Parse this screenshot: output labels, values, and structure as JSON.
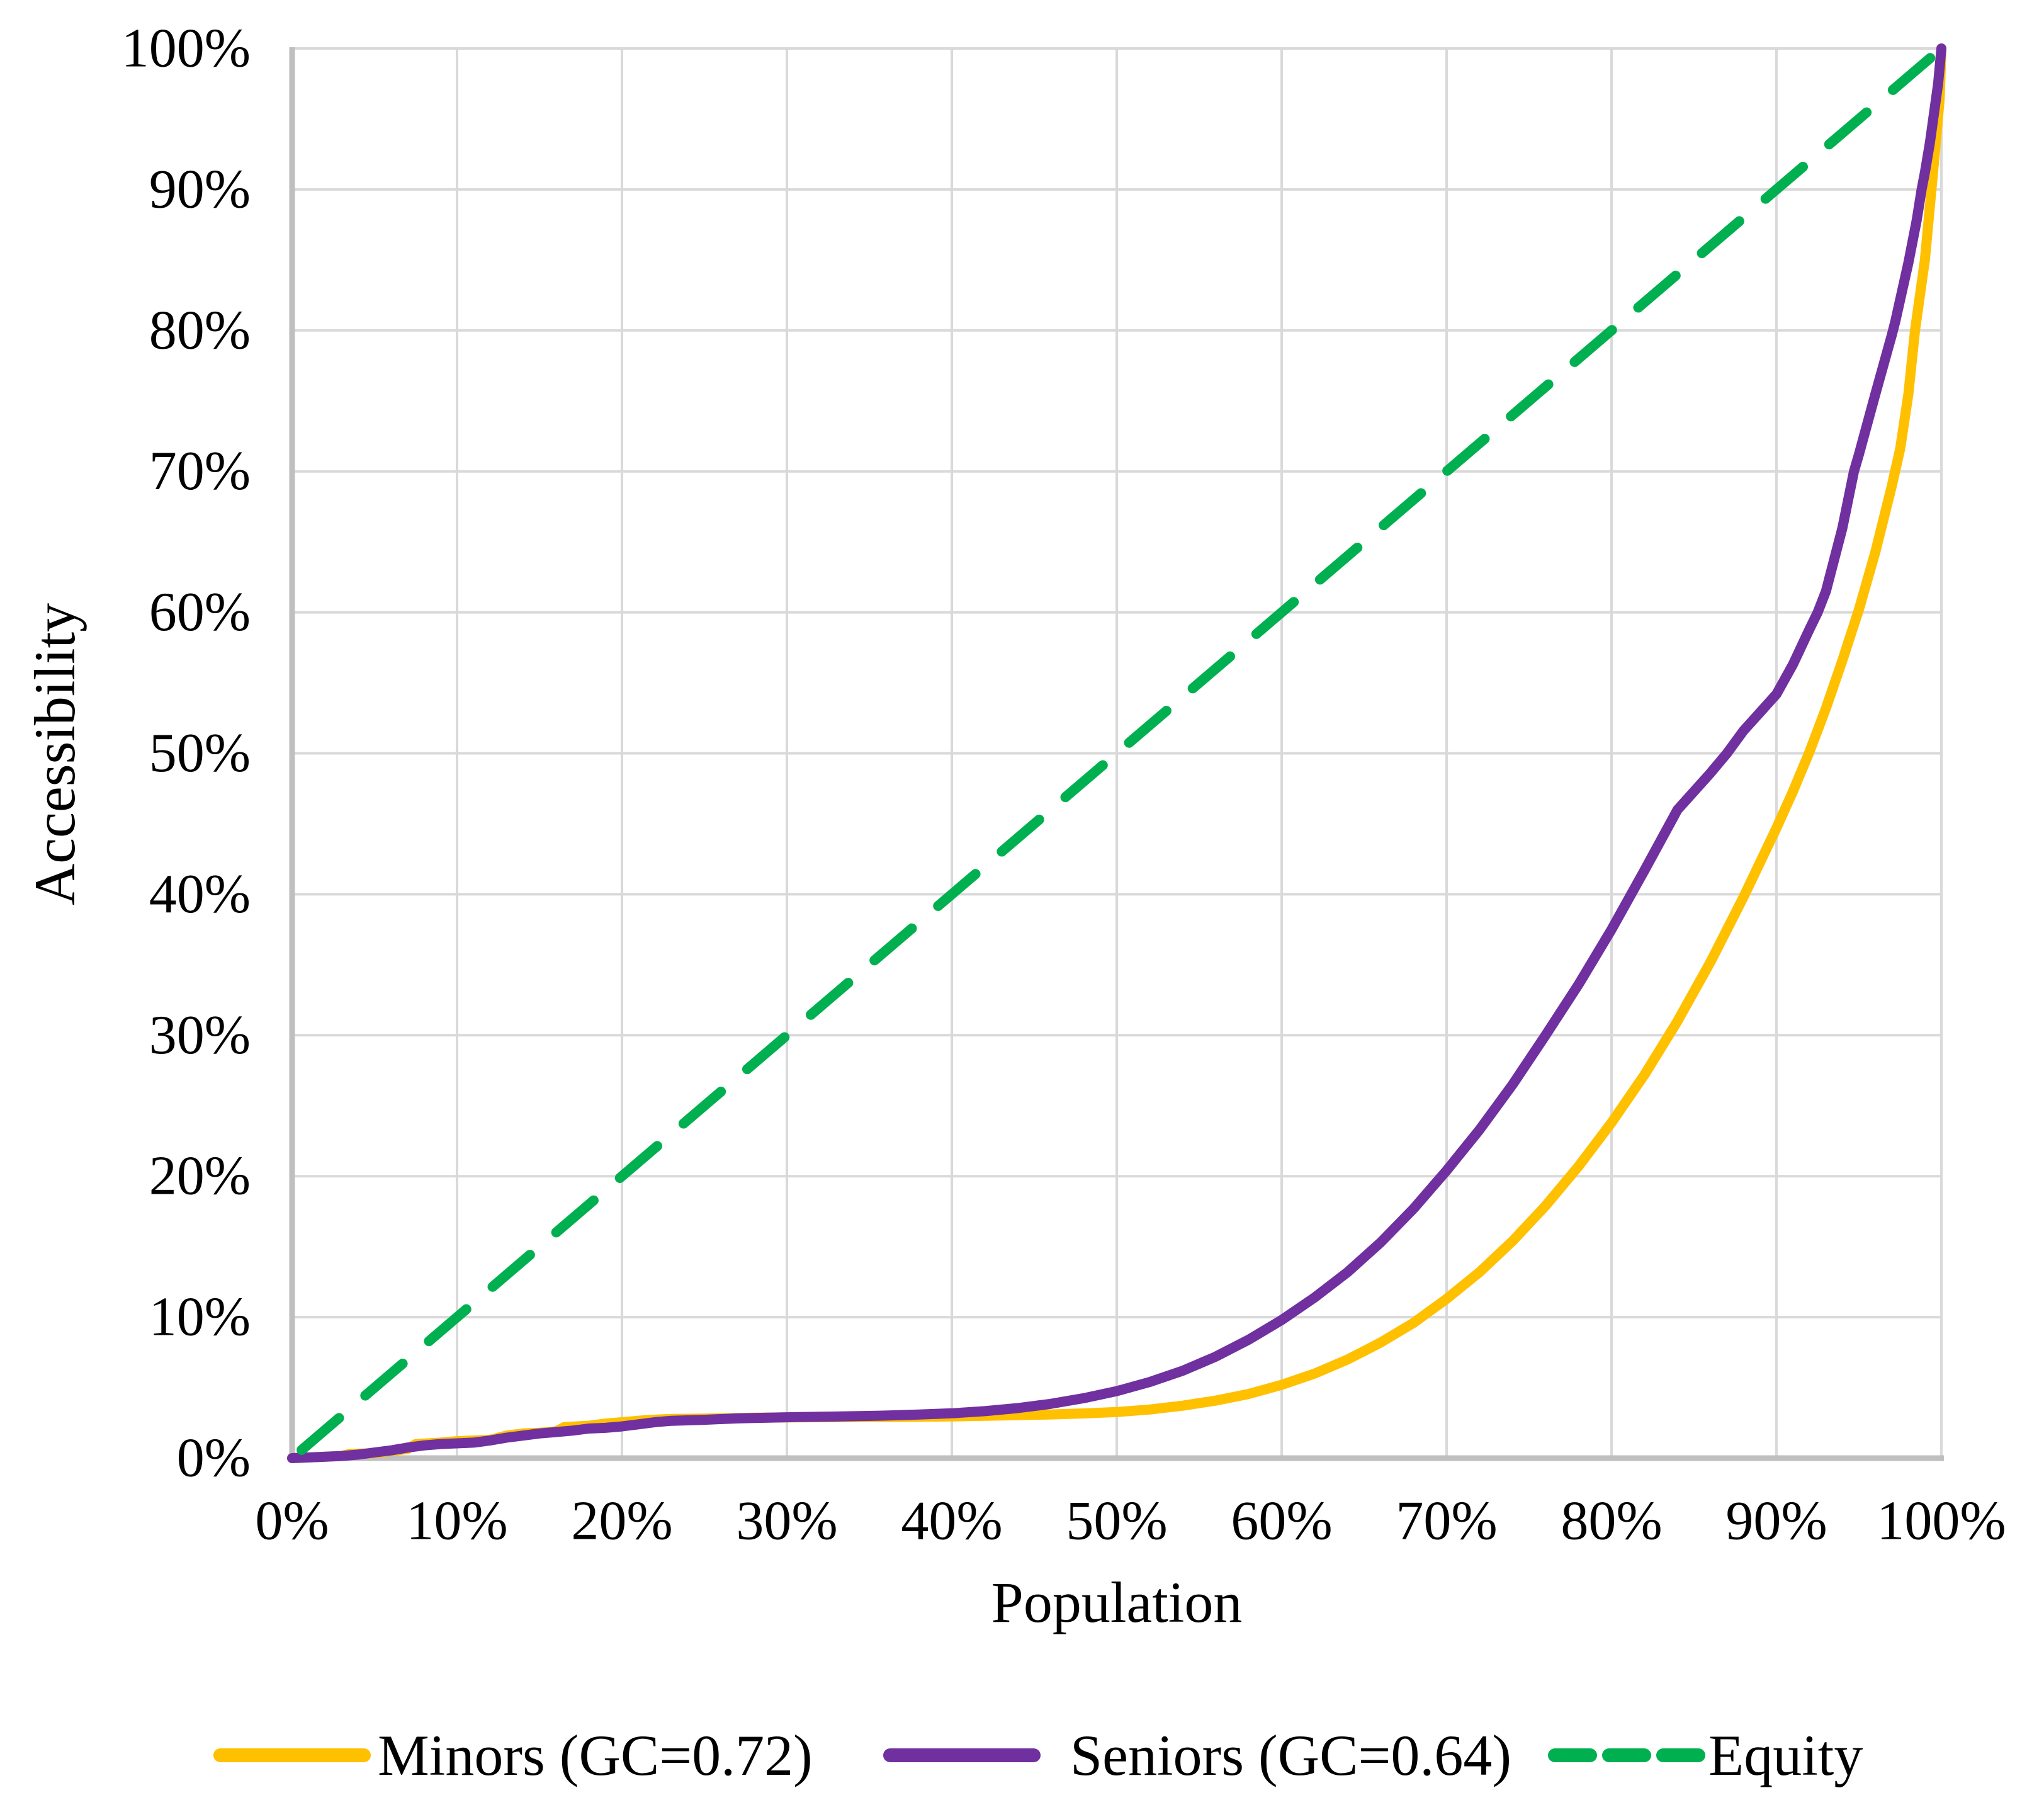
{
  "chart_data": {
    "type": "line",
    "title": "",
    "xlabel": "Population",
    "ylabel": "Accessibility",
    "xlim": [
      0,
      100
    ],
    "ylim": [
      0,
      100
    ],
    "grid": true,
    "legend_position": "bottom",
    "x_ticks": [
      "0%",
      "10%",
      "20%",
      "30%",
      "40%",
      "50%",
      "60%",
      "70%",
      "80%",
      "90%",
      "100%"
    ],
    "y_ticks": [
      "0%",
      "10%",
      "20%",
      "30%",
      "40%",
      "50%",
      "60%",
      "70%",
      "80%",
      "90%",
      "100%"
    ],
    "series": [
      {
        "name": "Minors (GC=0.72)",
        "color": "#FFC000",
        "line_style": "solid",
        "gini_coefficient": 0.72,
        "points": [
          [
            0,
            0
          ],
          [
            1,
            0.05
          ],
          [
            2,
            0.1
          ],
          [
            3,
            0.15
          ],
          [
            3.5,
            0.3
          ],
          [
            5,
            0.35
          ],
          [
            6,
            0.5
          ],
          [
            7,
            0.65
          ],
          [
            7.5,
            1.0
          ],
          [
            9,
            1.1
          ],
          [
            10,
            1.2
          ],
          [
            11,
            1.25
          ],
          [
            12,
            1.3
          ],
          [
            13,
            1.6
          ],
          [
            14,
            1.75
          ],
          [
            15,
            1.8
          ],
          [
            16,
            1.9
          ],
          [
            16.5,
            2.2
          ],
          [
            18,
            2.3
          ],
          [
            19,
            2.45
          ],
          [
            20.5,
            2.6
          ],
          [
            21.5,
            2.7
          ],
          [
            23,
            2.78
          ],
          [
            25,
            2.8
          ],
          [
            28,
            2.87
          ],
          [
            31,
            2.9
          ],
          [
            34,
            2.91
          ],
          [
            37,
            2.93
          ],
          [
            40,
            2.96
          ],
          [
            42,
            3.0
          ],
          [
            44,
            3.05
          ],
          [
            46,
            3.1
          ],
          [
            48,
            3.17
          ],
          [
            50,
            3.27
          ],
          [
            52,
            3.45
          ],
          [
            54,
            3.72
          ],
          [
            56,
            4.08
          ],
          [
            58,
            4.55
          ],
          [
            60,
            5.2
          ],
          [
            62,
            6.0
          ],
          [
            64,
            7.0
          ],
          [
            66,
            8.2
          ],
          [
            68,
            9.6
          ],
          [
            70,
            11.3
          ],
          [
            72,
            13.2
          ],
          [
            74,
            15.4
          ],
          [
            76,
            17.9
          ],
          [
            78,
            20.7
          ],
          [
            80,
            23.8
          ],
          [
            82,
            27.2
          ],
          [
            84,
            31.0
          ],
          [
            86,
            35.2
          ],
          [
            88,
            39.8
          ],
          [
            90,
            44.7
          ],
          [
            91,
            47.3
          ],
          [
            92,
            50.1
          ],
          [
            93,
            53.2
          ],
          [
            94,
            56.6
          ],
          [
            95,
            60.2
          ],
          [
            96,
            64.3
          ],
          [
            97,
            69.0
          ],
          [
            97.5,
            71.6
          ],
          [
            98,
            75.5
          ],
          [
            98.4,
            80.0
          ],
          [
            99,
            85.0
          ],
          [
            99.3,
            88.8
          ],
          [
            99.5,
            91.3
          ],
          [
            99.7,
            93.8
          ],
          [
            99.9,
            96.5
          ],
          [
            100,
            100
          ]
        ]
      },
      {
        "name": "Seniors (GC=0.64)",
        "color": "#7030A0",
        "line_style": "solid",
        "gini_coefficient": 0.64,
        "points": [
          [
            0,
            0
          ],
          [
            1,
            0.05
          ],
          [
            2,
            0.1
          ],
          [
            3,
            0.15
          ],
          [
            4,
            0.25
          ],
          [
            5,
            0.4
          ],
          [
            6,
            0.55
          ],
          [
            7,
            0.75
          ],
          [
            8,
            0.9
          ],
          [
            9,
            1.0
          ],
          [
            10,
            1.05
          ],
          [
            11,
            1.1
          ],
          [
            12,
            1.25
          ],
          [
            13,
            1.45
          ],
          [
            14,
            1.6
          ],
          [
            15,
            1.75
          ],
          [
            16,
            1.85
          ],
          [
            17,
            1.95
          ],
          [
            18,
            2.1
          ],
          [
            19,
            2.15
          ],
          [
            20,
            2.25
          ],
          [
            21,
            2.4
          ],
          [
            22,
            2.55
          ],
          [
            23,
            2.65
          ],
          [
            25,
            2.72
          ],
          [
            27,
            2.82
          ],
          [
            28,
            2.85
          ],
          [
            30,
            2.9
          ],
          [
            33,
            2.95
          ],
          [
            36,
            3.02
          ],
          [
            38,
            3.09
          ],
          [
            40,
            3.18
          ],
          [
            42,
            3.33
          ],
          [
            44,
            3.55
          ],
          [
            46,
            3.85
          ],
          [
            48,
            4.25
          ],
          [
            50,
            4.75
          ],
          [
            52,
            5.4
          ],
          [
            54,
            6.2
          ],
          [
            56,
            7.2
          ],
          [
            58,
            8.4
          ],
          [
            60,
            9.8
          ],
          [
            62,
            11.4
          ],
          [
            64,
            13.2
          ],
          [
            66,
            15.3
          ],
          [
            68,
            17.7
          ],
          [
            70,
            20.4
          ],
          [
            72,
            23.3
          ],
          [
            74,
            26.5
          ],
          [
            76,
            30.0
          ],
          [
            78,
            33.6
          ],
          [
            80,
            37.5
          ],
          [
            82,
            41.7
          ],
          [
            84,
            46.0
          ],
          [
            85,
            47.3
          ],
          [
            86,
            48.6
          ],
          [
            87,
            50.0
          ],
          [
            88,
            51.6
          ],
          [
            89,
            52.9
          ],
          [
            90,
            54.2
          ],
          [
            91,
            56.3
          ],
          [
            92,
            58.8
          ],
          [
            92.5,
            60.0
          ],
          [
            93,
            61.5
          ],
          [
            94,
            66.0
          ],
          [
            94.7,
            70.0
          ],
          [
            95,
            71.2
          ],
          [
            96,
            75.5
          ],
          [
            97,
            79.7
          ],
          [
            97.2,
            80.6
          ],
          [
            98,
            84.8
          ],
          [
            98.5,
            87.8
          ],
          [
            98.8,
            90.0
          ],
          [
            99,
            91.2
          ],
          [
            99.3,
            93.3
          ],
          [
            99.6,
            95.8
          ],
          [
            99.8,
            97.5
          ],
          [
            100,
            100
          ]
        ]
      },
      {
        "name": "Equity",
        "color": "#00B050",
        "line_style": "dashed",
        "points": [
          [
            0,
            0
          ],
          [
            100,
            100
          ]
        ]
      }
    ]
  },
  "colors": {
    "background": "#FFFFFF",
    "gridline": "#D9D9D9",
    "axis_line": "#BFBFBF",
    "text": "#000000"
  }
}
